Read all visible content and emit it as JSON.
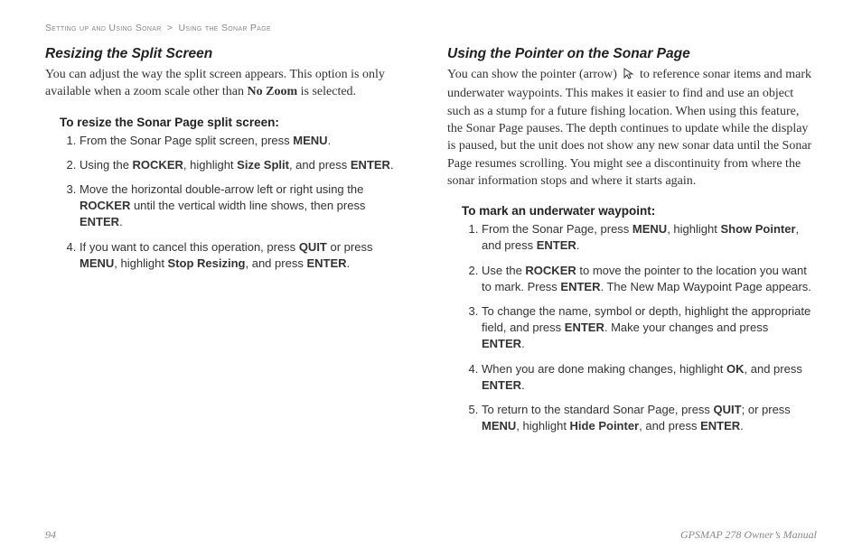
{
  "breadcrumb": {
    "part1": "Setting up and Using Sonar",
    "sep": ">",
    "part2": "Using the Sonar Page"
  },
  "left": {
    "title": "Resizing the Split Screen",
    "intro_before": "You can adjust the way the split screen appears. This option is only available when a zoom scale other than ",
    "intro_bold": "No Zoom",
    "intro_after": " is selected.",
    "howto": "To resize the Sonar Page split screen:",
    "steps": [
      [
        {
          "t": "From the Sonar Page split screen, press "
        },
        {
          "b": "MENU"
        },
        {
          "t": "."
        }
      ],
      [
        {
          "t": "Using the "
        },
        {
          "b": "ROCKER"
        },
        {
          "t": ", highlight "
        },
        {
          "b": "Size Split"
        },
        {
          "t": ", and press "
        },
        {
          "b": "ENTER"
        },
        {
          "t": "."
        }
      ],
      [
        {
          "t": "Move the horizontal double-arrow left or right using the "
        },
        {
          "b": "ROCKER"
        },
        {
          "t": " until the vertical width line shows, then press "
        },
        {
          "b": "ENTER"
        },
        {
          "t": "."
        }
      ],
      [
        {
          "t": "If you want to cancel this operation, press "
        },
        {
          "b": "QUIT"
        },
        {
          "t": " or press "
        },
        {
          "b": "MENU"
        },
        {
          "t": ", highlight "
        },
        {
          "b": "Stop Resizing"
        },
        {
          "t": ", and press "
        },
        {
          "b": "ENTER"
        },
        {
          "t": "."
        }
      ]
    ]
  },
  "right": {
    "title": "Using the Pointer on the Sonar Page",
    "intro_before": "You can show the pointer (arrow) ",
    "intro_after": " to reference sonar items and mark underwater waypoints. This makes it easier to find and use an object such as a stump for a future fishing location. When using this feature, the Sonar Page pauses. The depth continues to update while the display is paused, but the unit does not show any new sonar data until the Sonar Page resumes scrolling. You might see a discontinuity from where the sonar information stops and where it starts again.",
    "howto": "To mark an underwater waypoint:",
    "steps": [
      [
        {
          "t": "From the Sonar Page, press "
        },
        {
          "b": "MENU"
        },
        {
          "t": ", highlight "
        },
        {
          "b": "Show Pointer"
        },
        {
          "t": ", and press "
        },
        {
          "b": "ENTER"
        },
        {
          "t": "."
        }
      ],
      [
        {
          "t": "Use the "
        },
        {
          "b": "ROCKER"
        },
        {
          "t": " to move the pointer to the location you want to mark. Press "
        },
        {
          "b": "ENTER"
        },
        {
          "t": ". The New Map Waypoint Page appears."
        }
      ],
      [
        {
          "t": "To change the name, symbol or depth, highlight the appropriate field, and press "
        },
        {
          "b": "ENTER"
        },
        {
          "t": ". Make your changes and press "
        },
        {
          "b": "ENTER"
        },
        {
          "t": "."
        }
      ],
      [
        {
          "t": "When you are done making changes, highlight "
        },
        {
          "b": "OK"
        },
        {
          "t": ", and press "
        },
        {
          "b": "ENTER"
        },
        {
          "t": "."
        }
      ],
      [
        {
          "t": "To return to the standard Sonar Page, press "
        },
        {
          "b": "QUIT"
        },
        {
          "t": "; or press "
        },
        {
          "b": "MENU"
        },
        {
          "t": ", highlight "
        },
        {
          "b": "Hide Pointer"
        },
        {
          "t": ", and press "
        },
        {
          "b": "ENTER"
        },
        {
          "t": "."
        }
      ]
    ]
  },
  "footer": {
    "page": "94",
    "manual": "GPSMAP 278 Owner’s Manual"
  },
  "style": {
    "colors": {
      "text": "#333333",
      "muted": "#888888",
      "heading": "#222222",
      "bg": "#ffffff"
    },
    "fontsize": {
      "breadcrumb": 10.5,
      "section_title": 15.5,
      "intro_serif": 14,
      "howto": 13.5,
      "steps": 13,
      "footer": 12
    }
  }
}
